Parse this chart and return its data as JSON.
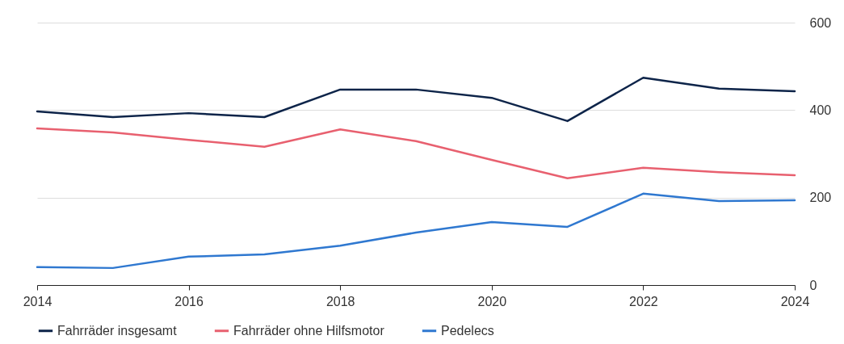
{
  "chart_data": {
    "type": "line",
    "x": [
      2014,
      2015,
      2016,
      2017,
      2018,
      2019,
      2020,
      2021,
      2022,
      2023,
      2024
    ],
    "xlim": [
      2014,
      2024
    ],
    "xticks": [
      2014,
      2016,
      2018,
      2020,
      2022,
      2024
    ],
    "ylim": [
      0,
      600
    ],
    "yticks": [
      0,
      200,
      400,
      600
    ],
    "grid": "y",
    "legend": "bottom",
    "marker": "none",
    "line_style": "solid",
    "series": [
      {
        "name": "Fahrräder insgesamt",
        "color": "#0d2449",
        "values": [
          397,
          384,
          393,
          384,
          447,
          447,
          428,
          375,
          474,
          449,
          443
        ]
      },
      {
        "name": "Fahrräder ohne Hilfsmotor",
        "color": "#e8606f",
        "values": [
          358,
          349,
          332,
          316,
          356,
          329,
          286,
          244,
          268,
          258,
          251
        ]
      },
      {
        "name": "Pedelecs",
        "color": "#2f78d0",
        "values": [
          41,
          39,
          65,
          70,
          90,
          120,
          144,
          133,
          209,
          192,
          194
        ]
      }
    ]
  }
}
